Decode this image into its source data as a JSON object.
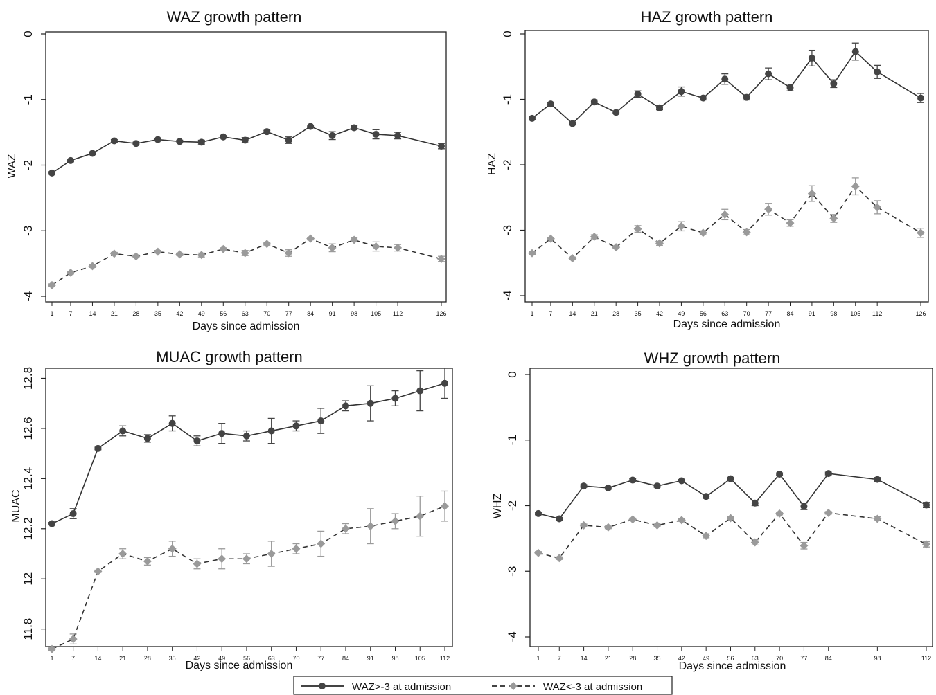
{
  "legend": {
    "items": [
      {
        "label": "WAZ>-3 at admission",
        "color": "#444444",
        "dash": false,
        "marker": "circle"
      },
      {
        "label": "WAZ<-3 at admission",
        "color": "#9a9a9a",
        "dash": true,
        "marker": "diamond"
      }
    ]
  },
  "chart_data": [
    {
      "type": "line",
      "title": "WAZ growth pattern",
      "xlabel": "Days since admission",
      "ylabel": "WAZ",
      "ylim": [
        -4,
        0
      ],
      "yticks": [
        0,
        -1,
        -2,
        -3,
        -4
      ],
      "ytick_labels": [
        "0",
        "-1",
        "-2",
        "-3",
        "-4"
      ],
      "xlim": [
        1,
        126
      ],
      "x": [
        1,
        7,
        14,
        21,
        28,
        35,
        42,
        49,
        56,
        63,
        70,
        77,
        84,
        91,
        98,
        105,
        112,
        126
      ],
      "x_tick_labels": [
        "1",
        "7",
        "14",
        "21",
        "28",
        "35",
        "42",
        "49",
        "56",
        "63",
        "70",
        "77",
        "84",
        "91",
        "98",
        "105",
        "112",
        "126"
      ],
      "series": [
        {
          "values": [
            -2.12,
            -1.93,
            -1.82,
            -1.63,
            -1.67,
            -1.61,
            -1.64,
            -1.65,
            -1.57,
            -1.62,
            -1.49,
            -1.62,
            -1.41,
            -1.55,
            -1.43,
            -1.53,
            -1.55,
            -1.71
          ],
          "err": [
            0.02,
            0.02,
            0.02,
            0.02,
            0.02,
            0.02,
            0.02,
            0.03,
            0.02,
            0.04,
            0.02,
            0.05,
            0.02,
            0.06,
            0.03,
            0.07,
            0.05,
            0.04
          ]
        },
        {
          "values": [
            -3.83,
            -3.64,
            -3.54,
            -3.35,
            -3.39,
            -3.32,
            -3.36,
            -3.37,
            -3.28,
            -3.34,
            -3.2,
            -3.34,
            -3.12,
            -3.26,
            -3.14,
            -3.24,
            -3.26,
            -3.43
          ],
          "err": [
            0.02,
            0.02,
            0.02,
            0.02,
            0.02,
            0.02,
            0.02,
            0.03,
            0.02,
            0.04,
            0.02,
            0.05,
            0.02,
            0.06,
            0.03,
            0.07,
            0.05,
            0.04
          ]
        }
      ]
    },
    {
      "type": "line",
      "title": "HAZ growth pattern",
      "xlabel": "Days since admission",
      "ylabel": "HAZ",
      "ylim": [
        -4,
        0
      ],
      "yticks": [
        0,
        -1,
        -2,
        -3,
        -4
      ],
      "ytick_labels": [
        "0",
        "-1",
        "-2",
        "-3",
        "-4"
      ],
      "xlim": [
        1,
        126
      ],
      "x": [
        1,
        7,
        14,
        21,
        28,
        35,
        42,
        49,
        56,
        63,
        70,
        77,
        84,
        91,
        98,
        105,
        112,
        126
      ],
      "x_tick_labels": [
        "1",
        "7",
        "14",
        "21",
        "28",
        "35",
        "42",
        "49",
        "56",
        "63",
        "70",
        "77",
        "84",
        "91",
        "98",
        "105",
        "112",
        "126"
      ],
      "series": [
        {
          "values": [
            -1.29,
            -1.07,
            -1.37,
            -1.04,
            -1.2,
            -0.92,
            -1.13,
            -0.88,
            -0.98,
            -0.69,
            -0.97,
            -0.61,
            -0.82,
            -0.37,
            -0.76,
            -0.27,
            -0.58,
            -0.98
          ],
          "err": [
            0.02,
            0.02,
            0.02,
            0.03,
            0.02,
            0.05,
            0.03,
            0.07,
            0.03,
            0.08,
            0.04,
            0.09,
            0.05,
            0.12,
            0.06,
            0.13,
            0.1,
            0.07
          ]
        },
        {
          "values": [
            -3.35,
            -3.13,
            -3.43,
            -3.1,
            -3.26,
            -2.98,
            -3.2,
            -2.94,
            -3.04,
            -2.76,
            -3.03,
            -2.68,
            -2.89,
            -2.44,
            -2.82,
            -2.33,
            -2.65,
            -3.04
          ],
          "err": [
            0.02,
            0.02,
            0.02,
            0.03,
            0.02,
            0.05,
            0.03,
            0.07,
            0.03,
            0.08,
            0.04,
            0.09,
            0.05,
            0.12,
            0.06,
            0.13,
            0.1,
            0.07
          ]
        }
      ]
    },
    {
      "type": "line",
      "title": "MUAC growth pattern",
      "xlabel": "Days since admission",
      "ylabel": "MUAC",
      "ylim": [
        11.73,
        12.84
      ],
      "yticks": [
        11.8,
        12,
        12.2,
        12.4,
        12.6,
        12.8
      ],
      "ytick_labels": [
        "11.8",
        "12",
        "12.2",
        "12.4",
        "12.6",
        "12.8"
      ],
      "xlim": [
        1,
        112
      ],
      "x": [
        1,
        7,
        14,
        21,
        28,
        35,
        42,
        49,
        56,
        63,
        70,
        77,
        84,
        91,
        98,
        105,
        112
      ],
      "x_tick_labels": [
        "1",
        "7",
        "14",
        "21",
        "28",
        "35",
        "42",
        "49",
        "56",
        "63",
        "70",
        "77",
        "84",
        "91",
        "98",
        "105",
        "112"
      ],
      "series": [
        {
          "values": [
            12.22,
            12.26,
            12.52,
            12.59,
            12.56,
            12.62,
            12.55,
            12.58,
            12.57,
            12.59,
            12.61,
            12.63,
            12.69,
            12.7,
            12.72,
            12.75,
            12.78
          ],
          "err": [
            0.005,
            0.02,
            0.005,
            0.02,
            0.015,
            0.03,
            0.02,
            0.04,
            0.02,
            0.05,
            0.02,
            0.05,
            0.02,
            0.07,
            0.03,
            0.08,
            0.06
          ]
        },
        {
          "values": [
            11.72,
            11.76,
            12.03,
            12.1,
            12.07,
            12.12,
            12.06,
            12.08,
            12.08,
            12.1,
            12.12,
            12.14,
            12.2,
            12.21,
            12.23,
            12.25,
            12.29
          ],
          "err": [
            0.005,
            0.02,
            0.005,
            0.02,
            0.015,
            0.03,
            0.02,
            0.04,
            0.02,
            0.05,
            0.02,
            0.05,
            0.02,
            0.07,
            0.03,
            0.08,
            0.06
          ]
        }
      ]
    },
    {
      "type": "line",
      "title": "WHZ growth pattern",
      "xlabel": "Days since admission",
      "ylabel": "WHZ",
      "ylim": [
        -4,
        0
      ],
      "yticks": [
        0,
        -1,
        -2,
        -3,
        -4
      ],
      "ytick_labels": [
        "0",
        "-1",
        "-2",
        "-3",
        "-4"
      ],
      "xlim": [
        1,
        112
      ],
      "x": [
        1,
        7,
        14,
        21,
        28,
        35,
        42,
        49,
        56,
        63,
        70,
        77,
        84,
        98,
        112
      ],
      "x_tick_labels": [
        "1",
        "7",
        "14",
        "21",
        "28",
        "35",
        "42",
        "49",
        "56",
        "63",
        "70",
        "77",
        "84",
        "98",
        "112"
      ],
      "series": [
        {
          "values": [
            -2.12,
            -2.2,
            -1.7,
            -1.73,
            -1.61,
            -1.7,
            -1.62,
            -1.86,
            -1.59,
            -1.96,
            -1.52,
            -2.01,
            -1.51,
            -1.6,
            -1.99
          ],
          "err": [
            0.02,
            0.02,
            0.02,
            0.02,
            0.02,
            0.02,
            0.02,
            0.03,
            0.02,
            0.04,
            0.02,
            0.05,
            0.02,
            0.03,
            0.04
          ]
        },
        {
          "values": [
            -2.72,
            -2.8,
            -2.3,
            -2.33,
            -2.21,
            -2.3,
            -2.22,
            -2.46,
            -2.19,
            -2.56,
            -2.12,
            -2.61,
            -2.11,
            -2.2,
            -2.59
          ],
          "err": [
            0.02,
            0.02,
            0.02,
            0.02,
            0.02,
            0.02,
            0.02,
            0.03,
            0.02,
            0.04,
            0.02,
            0.05,
            0.02,
            0.03,
            0.04
          ]
        }
      ]
    }
  ]
}
